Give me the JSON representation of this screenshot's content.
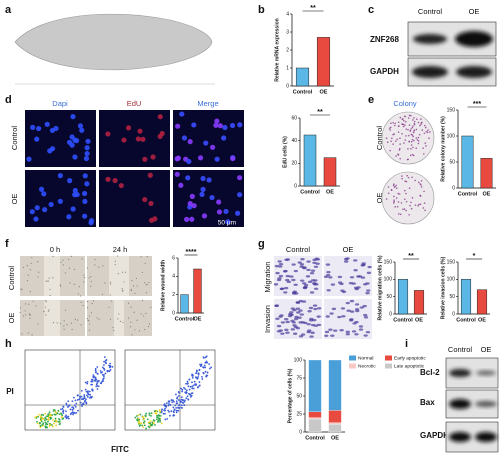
{
  "figure": {
    "panel_labels": [
      "a",
      "b",
      "c",
      "d",
      "e",
      "f",
      "g",
      "h",
      "i"
    ],
    "blot_c": {
      "columns": [
        "Control",
        "OE"
      ],
      "rows": [
        "ZNF268",
        "GAPDH"
      ]
    },
    "microscopy_d": {
      "columns": [
        "Dapi",
        "EdU",
        "Merge"
      ],
      "rows": [
        "Control",
        "OE"
      ],
      "scale_bar": "50 μm"
    },
    "colony_e": {
      "title": "Colony",
      "rows": [
        "Control",
        "OE"
      ]
    },
    "wound_f": {
      "columns": [
        "0 h",
        "24 h"
      ],
      "rows": [
        "Control",
        "OE"
      ]
    },
    "transwell_g": {
      "columns": [
        "Control",
        "OE"
      ],
      "rows": [
        "Migration",
        "Invasion"
      ]
    },
    "flow_h": {
      "xlabel": "FITC",
      "ylabel": "PI"
    },
    "blot_i": {
      "columns": [
        "Control",
        "OE"
      ],
      "rows": [
        "Bcl-2",
        "Bax",
        "GAPDH"
      ]
    }
  },
  "chart_data": [
    {
      "type": "bar",
      "ylabel": "Relative mRNA expression",
      "categories": [
        "Control",
        "OE"
      ],
      "values": [
        1.0,
        2.7
      ],
      "colors": [
        "#5bb7e5",
        "#e84a3f"
      ],
      "ylim": [
        0,
        4
      ],
      "yticks": [
        0,
        1,
        2,
        3,
        4
      ],
      "annotation": "**"
    },
    {
      "type": "bar",
      "ylabel": "EdU cells (%)",
      "categories": [
        "Control",
        "OE"
      ],
      "values": [
        45,
        25
      ],
      "colors": [
        "#5bb7e5",
        "#e84a3f"
      ],
      "ylim": [
        0,
        60
      ],
      "yticks": [
        0,
        20,
        40,
        60
      ],
      "annotation": "**"
    },
    {
      "type": "bar",
      "ylabel": "Relative colony number (%)",
      "categories": [
        "Control",
        "OE"
      ],
      "values": [
        100,
        57
      ],
      "colors": [
        "#5bb7e5",
        "#e84a3f"
      ],
      "ylim": [
        0,
        150
      ],
      "yticks": [
        0,
        50,
        100,
        150
      ],
      "annotation": "***"
    },
    {
      "type": "bar",
      "ylabel": "Relative wound width",
      "categories": [
        "Control",
        "OE"
      ],
      "values": [
        2.0,
        4.8
      ],
      "colors": [
        "#5bb7e5",
        "#e84a3f"
      ],
      "ylim": [
        0,
        6
      ],
      "yticks": [
        0,
        2,
        4,
        6
      ],
      "annotation": "****"
    },
    {
      "type": "bar",
      "ylabel": "Relative migration cells (%)",
      "categories": [
        "Control",
        "OE"
      ],
      "values": [
        100,
        68
      ],
      "colors": [
        "#5bb7e5",
        "#e84a3f"
      ],
      "ylim": [
        0,
        150
      ],
      "yticks": [
        0,
        50,
        100,
        150
      ],
      "annotation": "**"
    },
    {
      "type": "bar",
      "ylabel": "Relative invasion cells (%)",
      "categories": [
        "Control",
        "OE"
      ],
      "values": [
        100,
        70
      ],
      "colors": [
        "#5bb7e5",
        "#e84a3f"
      ],
      "ylim": [
        0,
        150
      ],
      "yticks": [
        0,
        50,
        100,
        150
      ],
      "annotation": "*"
    },
    {
      "type": "stacked_bar",
      "ylabel": "Percentage of cells (%)",
      "categories": [
        "Control",
        "OE"
      ],
      "series": [
        {
          "name": "Normal",
          "color": "#4a9fd8",
          "values": [
            72,
            70
          ]
        },
        {
          "name": "Early apoptotic",
          "color": "#e84a3f",
          "values": [
            8,
            17
          ]
        },
        {
          "name": "Necrotic",
          "color": "#f6c9c4",
          "values": [
            2,
            2
          ]
        },
        {
          "name": "Late apoptotic",
          "color": "#c8c8c8",
          "values": [
            18,
            11
          ]
        }
      ],
      "ylim": [
        0,
        100
      ],
      "yticks": [
        0,
        25,
        50,
        75,
        100
      ]
    }
  ]
}
